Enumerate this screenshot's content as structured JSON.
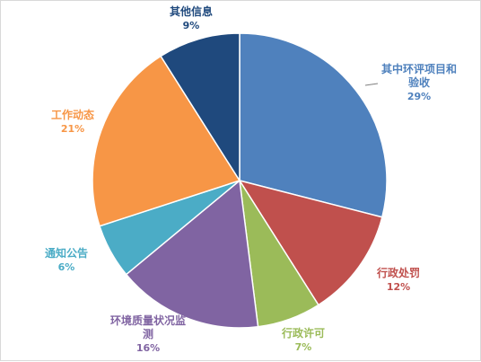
{
  "chart_data": {
    "type": "pie",
    "title": "",
    "slices": [
      {
        "name_lines": [
          "其中环评项目和",
          "验收"
        ],
        "value": 29,
        "pct_label": "29%",
        "color": "#4f81bd"
      },
      {
        "name_lines": [
          "行政处罚"
        ],
        "value": 12,
        "pct_label": "12%",
        "color": "#c0504d"
      },
      {
        "name_lines": [
          "行政许可"
        ],
        "value": 7,
        "pct_label": "7%",
        "color": "#9bbb59"
      },
      {
        "name_lines": [
          "环境质量状况监",
          "测"
        ],
        "value": 16,
        "pct_label": "16%",
        "color": "#8064a2"
      },
      {
        "name_lines": [
          "通知公告"
        ],
        "value": 6,
        "pct_label": "6%",
        "color": "#4bacc6"
      },
      {
        "name_lines": [
          "工作动态"
        ],
        "value": 21,
        "pct_label": "21%",
        "color": "#f79646"
      },
      {
        "name_lines": [
          "其他信息"
        ],
        "value": 9,
        "pct_label": "9%",
        "color": "#1f497d"
      }
    ],
    "legend": "none",
    "start_angle": "12 o'clock",
    "direction": "clockwise"
  }
}
